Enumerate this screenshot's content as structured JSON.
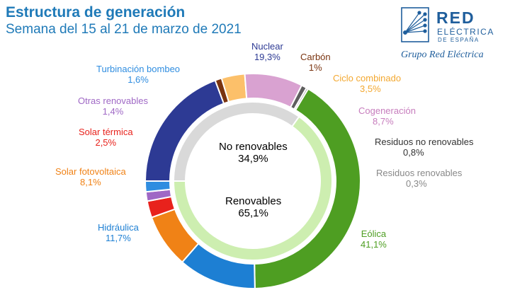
{
  "header": {
    "title": "Estructura de generación",
    "subtitle": "Semana del 15 al 21 de marzo de 2021"
  },
  "logo": {
    "name": "RED",
    "line2": "ELÉCTRICA",
    "line3": "DE ESPAÑA",
    "group": "Grupo Red Eléctrica"
  },
  "chart_data": {
    "type": "pie",
    "variant": "nested-donut",
    "title": "Estructura de generación",
    "subtitle": "Semana del 15 al 21 de marzo de 2021",
    "outer": {
      "categories": [
        "Nuclear",
        "Carbón",
        "Ciclo combinado",
        "Cogeneración",
        "Residuos no renovables",
        "Residuos renovables",
        "Eólica",
        "Hidráulica",
        "Solar fotovoltaica",
        "Solar térmica",
        "Otras renovables",
        "Turbinación bombeo"
      ],
      "values": [
        19.3,
        1.0,
        3.5,
        8.7,
        0.8,
        0.3,
        41.1,
        11.7,
        8.1,
        2.5,
        1.4,
        1.6
      ],
      "display": [
        "19,3%",
        "1%",
        "3,5%",
        "8,7%",
        "0,8%",
        "0,3%",
        "41,1%",
        "11,7%",
        "8,1%",
        "2,5%",
        "1,4%",
        "1,6%"
      ],
      "colors": [
        "#2d3a94",
        "#7a3410",
        "#fcc06a",
        "#d9a2d1",
        "#5e5e5e",
        "#a3a3a3",
        "#4e9e22",
        "#1d7fd3",
        "#f08216",
        "#e8221c",
        "#9f68c5",
        "#2f8de0"
      ],
      "label_colors": [
        "#2d3a94",
        "#7a3410",
        "#f3a830",
        "#c77dbd",
        "#333333",
        "#888888",
        "#4e9e22",
        "#1d7fd3",
        "#f08216",
        "#e8221c",
        "#9f68c5",
        "#2f8de0"
      ]
    },
    "inner": {
      "categories": [
        "No renovables",
        "Renovables"
      ],
      "values": [
        34.9,
        65.1
      ],
      "display": [
        "34,9%",
        "65,1%"
      ],
      "colors": [
        "#d9d9d9",
        "#cdeeb0"
      ]
    }
  }
}
